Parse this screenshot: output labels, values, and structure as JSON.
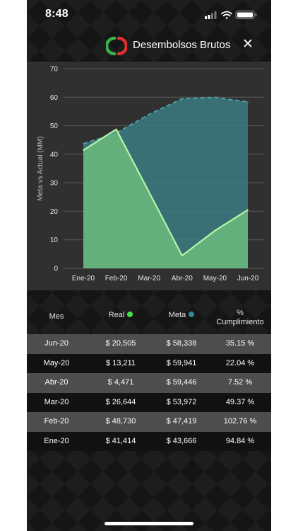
{
  "status_bar": {
    "time": "8:48"
  },
  "header": {
    "title": "Desembolsos Brutos",
    "close_label": "✕"
  },
  "colors": {
    "real": "#7fd87f",
    "meta": "#3a7f86",
    "real_dot": "#44e244",
    "meta_dot": "#2d8a97"
  },
  "chart_data": {
    "type": "area",
    "categories": [
      "Ene-20",
      "Feb-20",
      "Mar-20",
      "Abr-20",
      "May-20",
      "Jun-20"
    ],
    "series": [
      {
        "name": "Real",
        "values": [
          41.414,
          48.73,
          26.644,
          4.471,
          13.211,
          20.505
        ]
      },
      {
        "name": "Meta",
        "values": [
          43.666,
          47.419,
          53.972,
          59.446,
          59.941,
          58.338
        ]
      }
    ],
    "ylabel": "Meta vs Actual (MM)",
    "xlabel": "",
    "ylim": [
      0,
      70
    ],
    "yticks": [
      0,
      10,
      20,
      30,
      40,
      50,
      60,
      70
    ],
    "grid": true
  },
  "table": {
    "headers": {
      "mes": "Mes",
      "real": "Real",
      "meta": "Meta",
      "pct_line1": "%",
      "pct_line2": "Cumplimiento"
    },
    "rows": [
      {
        "mes": "Jun-20",
        "real": "$ 20,505",
        "meta": "$ 58,338",
        "pct": "35.15 %"
      },
      {
        "mes": "May-20",
        "real": "$ 13,211",
        "meta": "$ 59,941",
        "pct": "22.04 %"
      },
      {
        "mes": "Abr-20",
        "real": "$ 4,471",
        "meta": "$ 59,446",
        "pct": "7.52 %"
      },
      {
        "mes": "Mar-20",
        "real": "$ 26,644",
        "meta": "$ 53,972",
        "pct": "49.37 %"
      },
      {
        "mes": "Feb-20",
        "real": "$ 48,730",
        "meta": "$ 47,419",
        "pct": "102.76 %"
      },
      {
        "mes": "Ene-20",
        "real": "$ 41,414",
        "meta": "$ 43,666",
        "pct": "94.84 %"
      }
    ]
  }
}
